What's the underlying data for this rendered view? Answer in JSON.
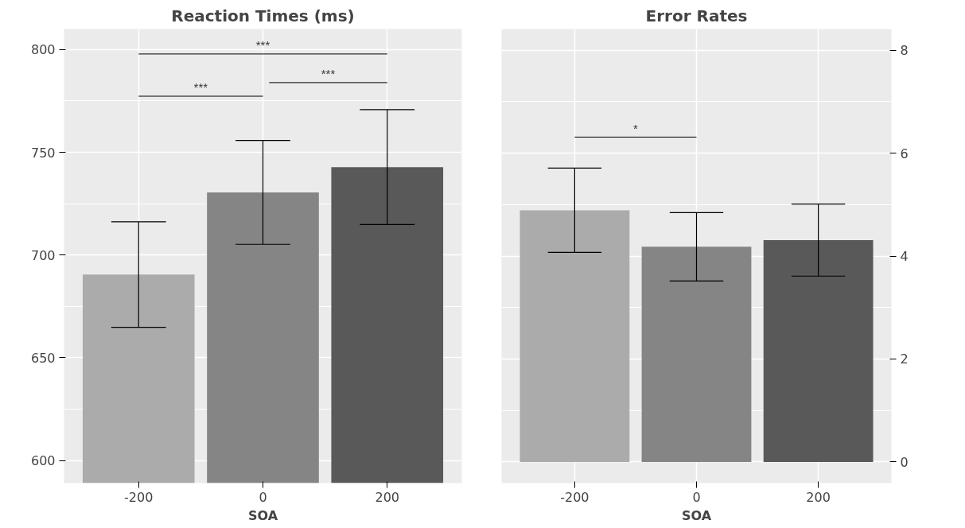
{
  "chart_data": [
    {
      "type": "bar",
      "title": "Reaction Times (ms)",
      "xlabel": "SOA",
      "categories": [
        "-200",
        "0",
        "200"
      ],
      "values": [
        690.5,
        730.5,
        742.8
      ],
      "colors": [
        "#ababab",
        "#858585",
        "#595959"
      ],
      "errors": [
        25.7,
        25.3,
        28
      ],
      "ylim": [
        589,
        810
      ],
      "yticks": [
        600,
        650,
        700,
        750,
        800
      ],
      "grid": true,
      "annotations": [
        "***",
        "***",
        "***"
      ]
    },
    {
      "type": "bar",
      "title": "Error Rates",
      "xlabel": "SOA",
      "categories": [
        "-200",
        "0",
        "200"
      ],
      "values": [
        4.89,
        4.18,
        4.31
      ],
      "colors": [
        "#ababab",
        "#858585",
        "#595959"
      ],
      "errors": [
        0.82,
        0.665,
        0.7
      ],
      "ylim": [
        -0.41,
        8.41
      ],
      "yticks": [
        0,
        2,
        4,
        6,
        8
      ],
      "grid": true,
      "annotations": [
        "*"
      ]
    }
  ]
}
